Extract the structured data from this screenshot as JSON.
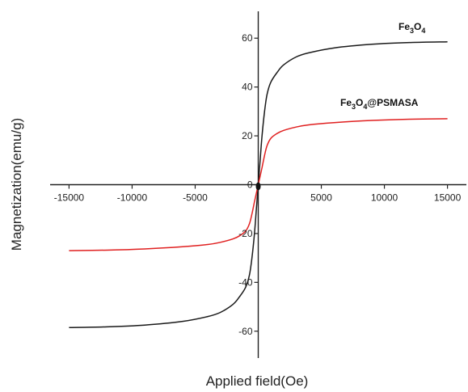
{
  "chart_data": {
    "type": "line",
    "xlabel": "Applied field(Oe)",
    "ylabel": "Magnetization(emu/g)",
    "xlim": [
      -16500,
      16500
    ],
    "ylim": [
      -71,
      71
    ],
    "xticks": [
      -15000,
      -10000,
      -5000,
      0,
      5000,
      10000,
      15000
    ],
    "xtick_labels": [
      "-15000",
      "-10000",
      "-5000",
      "0",
      "5000",
      "10000",
      "15000"
    ],
    "yticks": [
      -60,
      -40,
      -20,
      0,
      20,
      40,
      60
    ],
    "ytick_labels": [
      "-60",
      "-40",
      "-20",
      "0",
      "20",
      "40",
      "60"
    ],
    "grid": false,
    "series": [
      {
        "label_main": "Fe",
        "label_sub1": "3",
        "label_mid": "O",
        "label_sub2": "4",
        "label_tail": "",
        "color": "#1a1a1a",
        "x": [
          -15000,
          -12000,
          -9000,
          -6000,
          -4000,
          -3000,
          -2000,
          -1500,
          -1000,
          -700,
          -500,
          -300,
          -150,
          0,
          150,
          300,
          500,
          700,
          1000,
          1500,
          2000,
          3000,
          4000,
          6000,
          9000,
          12000,
          15000
        ],
        "y": [
          -58.5,
          -58.2,
          -57.5,
          -56.0,
          -54.0,
          -52.3,
          -49.0,
          -46.0,
          -42.0,
          -37.0,
          -30.0,
          -20.0,
          -10.0,
          0,
          10.0,
          20.0,
          30.0,
          37.0,
          42.0,
          46.0,
          49.0,
          52.3,
          54.0,
          56.0,
          57.5,
          58.2,
          58.5
        ]
      },
      {
        "label_main": "Fe",
        "label_sub1": "3",
        "label_mid": "O",
        "label_sub2": "4",
        "label_tail": "@PSMASA",
        "color": "#e02020",
        "x": [
          -15000,
          -12000,
          -9000,
          -6000,
          -4000,
          -3000,
          -2000,
          -1500,
          -1000,
          -700,
          -500,
          -300,
          -150,
          0,
          150,
          300,
          500,
          700,
          1000,
          1500,
          2000,
          3000,
          4000,
          6000,
          9000,
          12000,
          15000
        ],
        "y": [
          -27.0,
          -26.8,
          -26.3,
          -25.4,
          -24.5,
          -23.6,
          -22.2,
          -21.0,
          -19.0,
          -16.0,
          -12.0,
          -7.0,
          -3.5,
          0,
          3.5,
          7.0,
          12.0,
          16.0,
          19.0,
          21.0,
          22.2,
          23.6,
          24.5,
          25.4,
          26.3,
          26.8,
          27.0
        ]
      }
    ]
  }
}
